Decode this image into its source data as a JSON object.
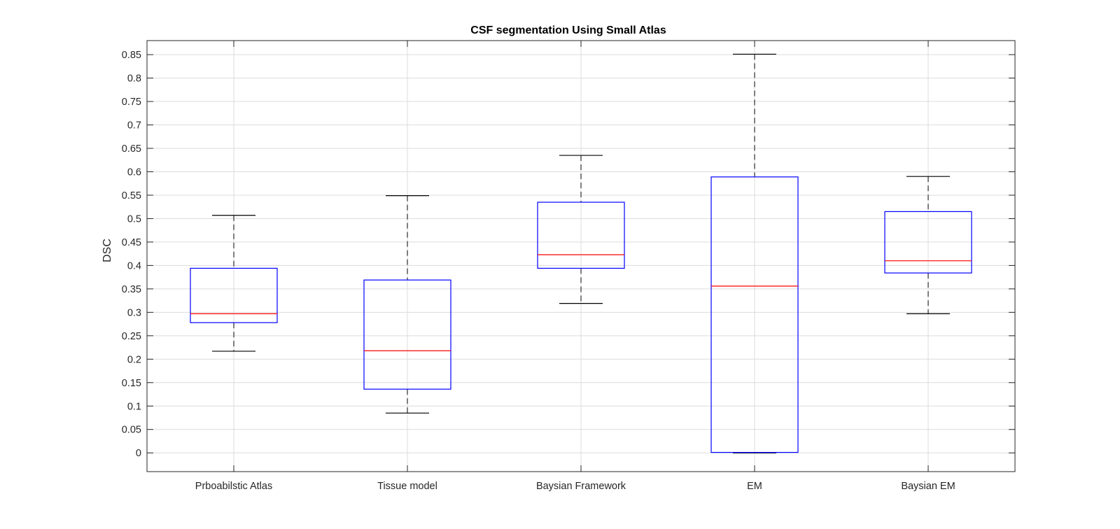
{
  "chart_data": {
    "type": "box",
    "title": "CSF segmentation Using Small Atlas",
    "xlabel": "",
    "ylabel": "DSC",
    "ylim": [
      -0.04,
      0.88
    ],
    "yticks": [
      "0",
      "0.05",
      "0.1",
      "0.15",
      "0.2",
      "0.25",
      "0.3",
      "0.35",
      "0.4",
      "0.45",
      "0.5",
      "0.55",
      "0.6",
      "0.65",
      "0.7",
      "0.75",
      "0.8",
      "0.85"
    ],
    "grid": true,
    "categories": [
      "Prboabilstic Atlas",
      "Tissue model",
      "Baysian Framework",
      "EM",
      "Baysian EM"
    ],
    "boxes": [
      {
        "min": 0.217,
        "q1": 0.278,
        "median": 0.297,
        "q3": 0.394,
        "max": 0.507
      },
      {
        "min": 0.085,
        "q1": 0.136,
        "median": 0.218,
        "q3": 0.369,
        "max": 0.549
      },
      {
        "min": 0.319,
        "q1": 0.394,
        "median": 0.423,
        "q3": 0.535,
        "max": 0.635
      },
      {
        "min": 0.0,
        "q1": 0.001,
        "median": 0.356,
        "q3": 0.589,
        "max": 0.851
      },
      {
        "min": 0.297,
        "q1": 0.384,
        "median": 0.41,
        "q3": 0.515,
        "max": 0.59
      }
    ],
    "colors": {
      "box": "#0000ff",
      "median": "#ff0000",
      "whisker": "#000000",
      "grid": "#dcdcdc"
    }
  }
}
